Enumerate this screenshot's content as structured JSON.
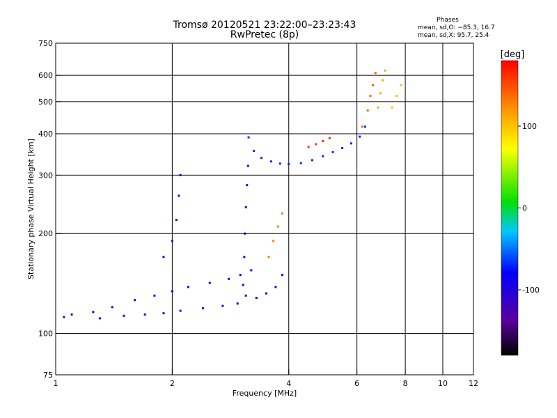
{
  "chart_data": {
    "type": "scatter",
    "title": "Tromsø 20120521 23:22:00–23:23:43",
    "subtitle": "RwPretec (8p)",
    "phases": {
      "header": "Phases",
      "line1": "mean, sd,O: −85.3, 16.7",
      "line2": "mean, sd,X:  95.7, 25.4"
    },
    "xlabel": "Frequency [MHz]",
    "ylabel": "Stationary phase Virtual Height [km]",
    "x_scale": "log",
    "y_scale": "log",
    "xlim": [
      1,
      12
    ],
    "ylim": [
      75,
      750
    ],
    "x_ticks": [
      1,
      2,
      4,
      6,
      8,
      10,
      12
    ],
    "x_tick_labels": [
      "1",
      "2",
      "4",
      "6",
      "8",
      "10",
      "12"
    ],
    "y_ticks": [
      75,
      100,
      200,
      300,
      400,
      500,
      600,
      750
    ],
    "y_tick_labels": [
      "75",
      "100",
      "200",
      "300",
      "400",
      "500",
      "600",
      "750"
    ],
    "grid": true,
    "colorbar": {
      "label": "[deg]",
      "min": -180,
      "max": 180,
      "ticks": [
        100,
        0,
        -100
      ],
      "tick_labels": [
        "100",
        "0",
        "-100"
      ]
    },
    "traces": [
      {
        "points": [
          [
            1.25,
            116
          ],
          [
            1.4,
            120
          ],
          [
            1.6,
            126
          ],
          [
            1.8,
            130
          ],
          [
            2.0,
            134
          ],
          [
            2.2,
            138
          ],
          [
            2.5,
            142
          ],
          [
            2.8,
            146
          ],
          [
            3.0,
            150
          ],
          [
            3.2,
            155
          ]
        ],
        "phase": -100
      },
      {
        "points": [
          [
            1.3,
            111
          ],
          [
            1.5,
            113
          ],
          [
            1.7,
            114
          ],
          [
            1.9,
            115
          ],
          [
            2.1,
            117
          ],
          [
            2.4,
            119
          ],
          [
            2.7,
            121
          ],
          [
            2.95,
            123
          ]
        ],
        "phase": -110
      },
      {
        "points": [
          [
            1.05,
            112
          ],
          [
            1.1,
            114
          ]
        ],
        "phase": -115
      },
      {
        "points": [
          [
            1.9,
            170
          ],
          [
            2.0,
            190
          ],
          [
            2.05,
            220
          ],
          [
            2.08,
            260
          ],
          [
            2.1,
            300
          ]
        ],
        "phase": -110
      },
      {
        "points": [
          [
            3.05,
            140
          ],
          [
            3.07,
            170
          ],
          [
            3.08,
            200
          ],
          [
            3.1,
            240
          ],
          [
            3.12,
            280
          ],
          [
            3.14,
            320
          ]
        ],
        "phase": -105
      },
      {
        "points": [
          [
            3.1,
            130
          ],
          [
            3.3,
            128
          ],
          [
            3.5,
            132
          ],
          [
            3.7,
            138
          ],
          [
            3.85,
            150
          ]
        ],
        "phase": -110
      },
      {
        "points": [
          [
            3.15,
            390
          ],
          [
            3.25,
            355
          ],
          [
            3.4,
            338
          ],
          [
            3.6,
            330
          ],
          [
            3.8,
            325
          ],
          [
            4.0,
            324
          ],
          [
            4.3,
            326
          ],
          [
            4.6,
            333
          ],
          [
            4.9,
            342
          ],
          [
            5.2,
            352
          ],
          [
            5.5,
            362
          ],
          [
            5.8,
            374
          ],
          [
            6.1,
            392
          ],
          [
            6.3,
            420
          ]
        ],
        "phase": -90
      },
      {
        "points": [
          [
            4.5,
            365
          ],
          [
            4.7,
            372
          ],
          [
            4.9,
            380
          ],
          [
            5.1,
            388
          ]
        ],
        "phase": 160
      },
      {
        "points": [
          [
            6.2,
            420
          ],
          [
            6.4,
            470
          ],
          [
            6.5,
            520
          ],
          [
            6.6,
            560
          ],
          [
            6.7,
            610
          ]
        ],
        "phase": 140
      },
      {
        "points": [
          [
            6.8,
            480
          ],
          [
            6.9,
            530
          ],
          [
            7.0,
            580
          ],
          [
            7.1,
            620
          ]
        ],
        "phase": 110
      },
      {
        "points": [
          [
            7.4,
            480
          ],
          [
            7.6,
            520
          ],
          [
            7.8,
            560
          ]
        ],
        "phase": 100
      },
      {
        "points": [
          [
            3.55,
            170
          ],
          [
            3.65,
            190
          ],
          [
            3.75,
            210
          ],
          [
            3.85,
            230
          ]
        ],
        "phase": 130
      }
    ]
  }
}
